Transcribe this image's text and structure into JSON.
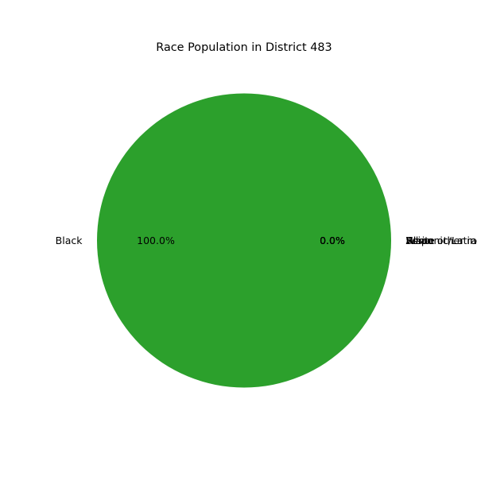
{
  "chart_data": {
    "type": "pie",
    "title": "Race Population in District 483",
    "slices": [
      {
        "label": "White",
        "value": 0,
        "pct_label": "0.0%",
        "color": "#1f77b4"
      },
      {
        "label": "Asian",
        "value": 0,
        "pct_label": "0.0%",
        "color": "#ff7f0e"
      },
      {
        "label": "Black",
        "value": 100,
        "pct_label": "100.0%",
        "color": "#2ca02c"
      },
      {
        "label": "Hispanic/Latino",
        "value": 0,
        "pct_label": "0.0%",
        "color": "#d62728"
      },
      {
        "label": "Some other race",
        "value": 0,
        "pct_label": "0.0%",
        "color": "#9467bd"
      }
    ],
    "start_angle_deg": 0,
    "direction": "counterclockwise",
    "legend": "none"
  }
}
